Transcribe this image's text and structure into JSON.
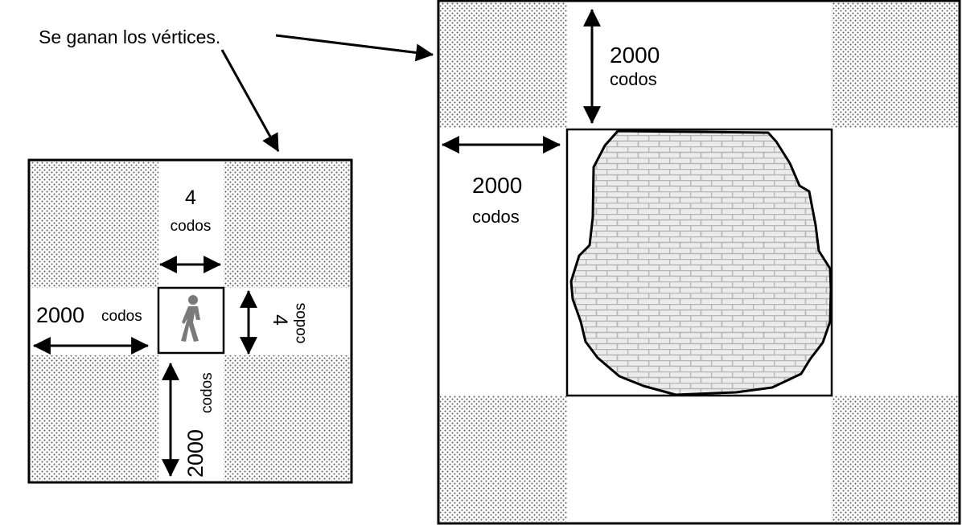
{
  "caption": "Se ganan los vértices.",
  "left_figure": {
    "small_square": {
      "number": "4",
      "unit": "codos"
    },
    "small_square_side": {
      "number": "4",
      "unit": "codos"
    },
    "west_label": {
      "number": "2000",
      "unit": "codos"
    },
    "south_label": {
      "number": "2000",
      "unit": "codos"
    },
    "figure_icon": "walking-person-icon"
  },
  "right_figure": {
    "north_label": {
      "number": "2000",
      "unit": "codos"
    },
    "west_label": {
      "number": "2000",
      "unit": "codos"
    },
    "city_fill": "brick-wall-pattern"
  },
  "colors": {
    "stroke": "#000000",
    "dots": "#555555",
    "brick": "#bdbdbd",
    "brick_bg": "#ececec"
  }
}
